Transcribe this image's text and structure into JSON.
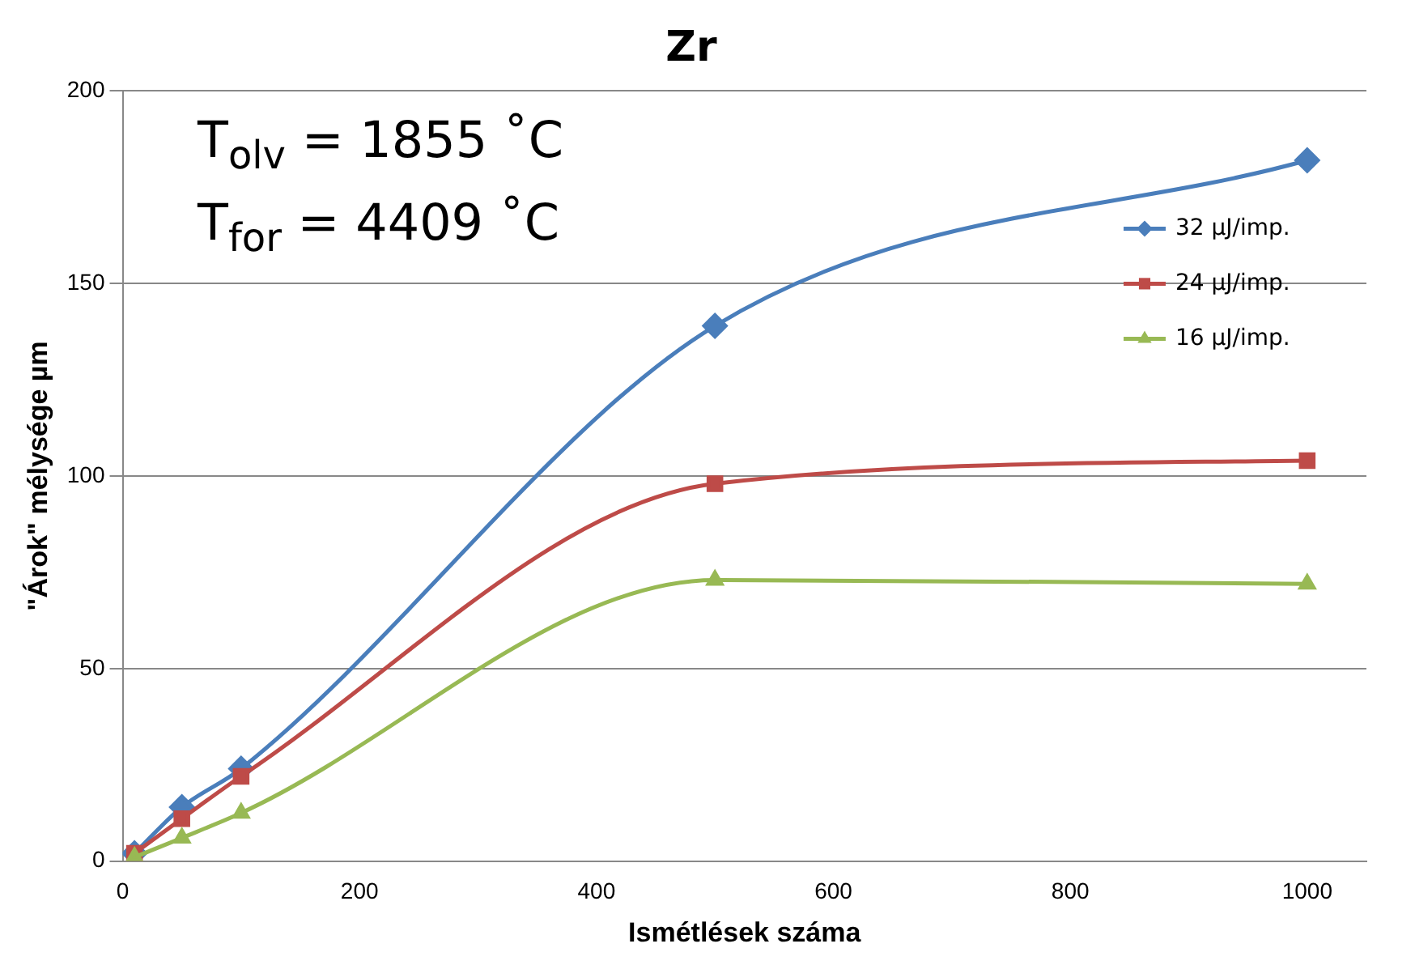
{
  "chart_data": {
    "type": "line",
    "title": "Zr",
    "xlabel": "Ismétlések száma",
    "ylabel": "\"Árok\" mélysége µm",
    "annotations": [
      "T$_{olv}$ = 1855 ˚C",
      "T$_{for}$ = 4409 ˚C"
    ],
    "x": [
      10,
      50,
      100,
      500,
      1000
    ],
    "series": [
      {
        "name": "32 µJ/imp.",
        "color": "#4a7ebb",
        "marker": "diamond",
        "values": [
          2,
          14,
          24,
          139,
          182
        ]
      },
      {
        "name": "24 µJ/imp.",
        "color": "#be4b48",
        "marker": "square",
        "values": [
          2,
          11,
          22,
          98,
          104
        ]
      },
      {
        "name": "16 µJ/imp.",
        "color": "#98b954",
        "marker": "triangle",
        "values": [
          1,
          6,
          12.5,
          73,
          72
        ]
      }
    ],
    "xlim": [
      0,
      1050
    ],
    "xticks": [
      0,
      200,
      400,
      600,
      800,
      1000
    ],
    "ylim": [
      0,
      200
    ],
    "yticks": [
      0,
      50,
      100,
      150,
      200
    ],
    "grid": "y",
    "legend": "top right"
  }
}
